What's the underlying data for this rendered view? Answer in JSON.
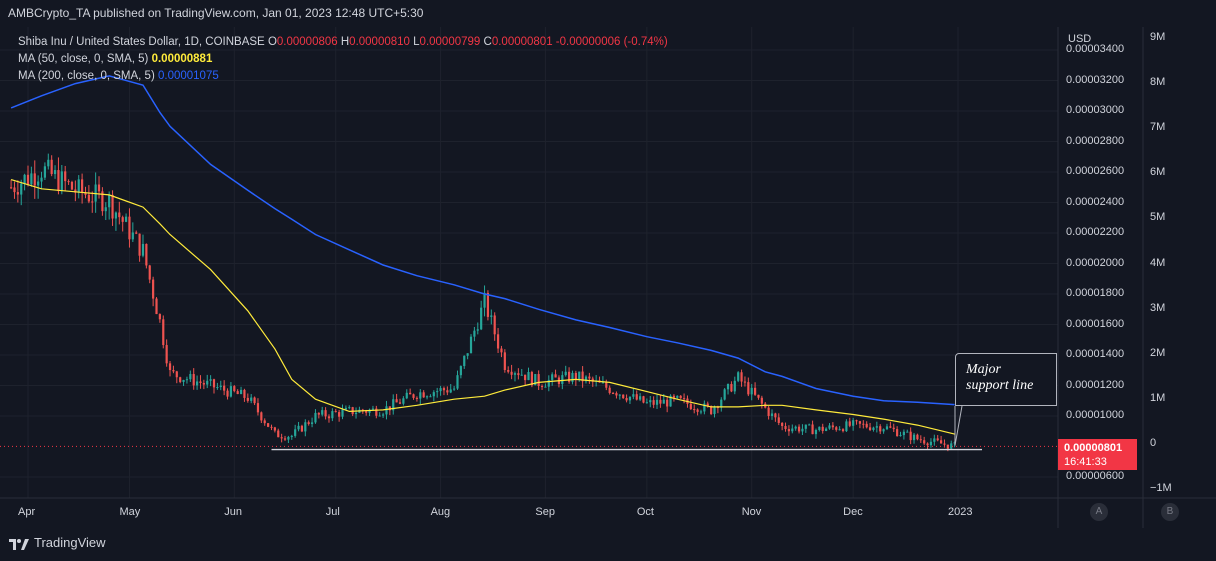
{
  "header": {
    "publisher": "AMBCrypto_TA published on TradingView.com, Jan 01, 2023 12:48 UTC+5:30"
  },
  "legend": {
    "symbol": "Shiba Inu / United States Dollar, 1D, COINBASE",
    "o_label": "O",
    "o": "0.00000806",
    "h_label": "H",
    "h": "0.00000810",
    "l_label": "L",
    "l": "0.00000799",
    "c_label": "C",
    "c": "0.00000801",
    "change": "-0.00000006 (-0.74%)",
    "ma50_label": "MA (50, close, 0, SMA, 5)",
    "ma50_value": "0.00000881",
    "ma200_label": "MA (200, close, 0, SMA, 5)",
    "ma200_value": "0.00001075"
  },
  "axis": {
    "currency": "USD",
    "price_ticks": [
      "0.00000600",
      "0.00001000",
      "0.00001200",
      "0.00001400",
      "0.00001600",
      "0.00001800",
      "0.00002000",
      "0.00002200",
      "0.00002400",
      "0.00002600",
      "0.00002800",
      "0.00003000",
      "0.00003200",
      "0.00003400"
    ],
    "volume_ticks": [
      "9M",
      "8M",
      "7M",
      "6M",
      "5M",
      "4M",
      "3M",
      "2M",
      "1M",
      "0",
      "−1M"
    ],
    "x_ticks": [
      "Apr",
      "May",
      "Jun",
      "Jul",
      "Aug",
      "Sep",
      "Oct",
      "Nov",
      "Dec",
      "2023"
    ]
  },
  "price_tag": {
    "price": "0.00000801",
    "countdown": "16:41:33"
  },
  "annotation": {
    "line1": "Major",
    "line2": "support line"
  },
  "buttons": {
    "a": "A",
    "b": "B"
  },
  "footer": {
    "brand": "TradingView"
  },
  "colors": {
    "background": "#131722",
    "up": "#26a69a",
    "down": "#ef5350",
    "ma50": "#ffeb3b",
    "ma200": "#2962ff",
    "support": "#d1d4dc"
  },
  "chart_data": {
    "type": "line",
    "title": "Shiba Inu / United States Dollar, 1D, COINBASE",
    "ylabel": "USD",
    "ylim": [
      5e-06,
      3.45e-05
    ],
    "x": [
      "2022-03-27",
      "2022-04-05",
      "2022-04-15",
      "2022-04-25",
      "2022-05-05",
      "2022-05-10",
      "2022-05-13",
      "2022-05-25",
      "2022-06-05",
      "2022-06-13",
      "2022-06-18",
      "2022-06-25",
      "2022-07-05",
      "2022-07-15",
      "2022-07-25",
      "2022-08-05",
      "2022-08-14",
      "2022-08-20",
      "2022-08-30",
      "2022-09-10",
      "2022-09-20",
      "2022-10-01",
      "2022-10-10",
      "2022-10-20",
      "2022-10-28",
      "2022-11-05",
      "2022-11-10",
      "2022-11-20",
      "2022-12-01",
      "2022-12-10",
      "2022-12-20",
      "2022-12-31"
    ],
    "series": [
      {
        "name": "Shiba Inu / United States Dollar",
        "values": [
          2.5e-05,
          2.62e-05,
          2.48e-05,
          2.41e-05,
          2.08e-05,
          1.62e-05,
          1.28e-05,
          1.2e-05,
          1.12e-05,
          8.8e-06,
          8.7e-06,
          1e-05,
          1.03e-05,
          1.04e-05,
          1.15e-05,
          1.18e-05,
          1.75e-05,
          1.34e-05,
          1.22e-05,
          1.26e-05,
          1.18e-05,
          1.08e-05,
          1.1e-05,
          1.04e-05,
          1.25e-05,
          1.05e-05,
          9.3e-06,
          9.1e-06,
          9.4e-06,
          9.3e-06,
          8.5e-06,
          8.01e-06
        ]
      },
      {
        "name": "MA (50, close, 0, SMA, 5)",
        "values": [
          2.55e-05,
          2.49e-05,
          2.47e-05,
          2.45e-05,
          2.37e-05,
          2.26e-05,
          2.19e-05,
          1.96e-05,
          1.69e-05,
          1.44e-05,
          1.24e-05,
          1.11e-05,
          1.03e-05,
          1.04e-05,
          1.07e-05,
          1.11e-05,
          1.13e-05,
          1.17e-05,
          1.22e-05,
          1.24e-05,
          1.22e-05,
          1.16e-05,
          1.11e-05,
          1.06e-05,
          1.06e-05,
          1.07e-05,
          1.07e-05,
          1.04e-05,
          1.01e-05,
          9.8e-06,
          9.4e-06,
          8.81e-06
        ]
      },
      {
        "name": "MA (200, close, 0, SMA, 5)",
        "values": [
          3.02e-05,
          3.1e-05,
          3.18e-05,
          3.23e-05,
          3.17e-05,
          2.99e-05,
          2.9e-05,
          2.65e-05,
          2.48e-05,
          2.36e-05,
          2.29e-05,
          2.19e-05,
          2.09e-05,
          1.99e-05,
          1.92e-05,
          1.86e-05,
          1.8e-05,
          1.77e-05,
          1.7e-05,
          1.63e-05,
          1.58e-05,
          1.52e-05,
          1.48e-05,
          1.43e-05,
          1.38e-05,
          1.29e-05,
          1.26e-05,
          1.18e-05,
          1.13e-05,
          1.1e-05,
          1.09e-05,
          1.075e-05
        ]
      }
    ],
    "support_level": 7.8e-06,
    "grid": true,
    "legend": "top-left"
  }
}
